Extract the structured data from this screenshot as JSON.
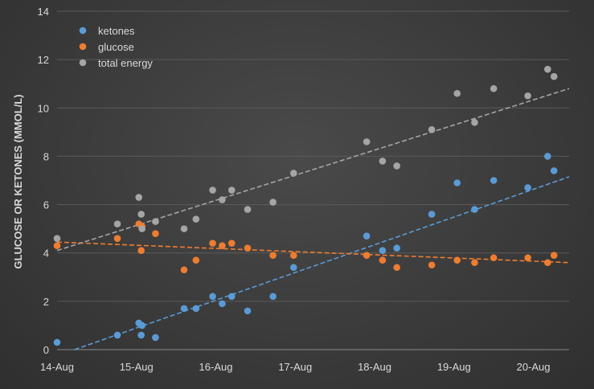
{
  "chart_data": {
    "type": "scatter",
    "title": "",
    "xlabel": "",
    "ylabel": "GLUCOSE OR KETONES (MMOL/L)",
    "xlim": [
      0,
      6.45
    ],
    "ylim": [
      0,
      14
    ],
    "yticks": [
      0,
      2,
      4,
      6,
      8,
      10,
      12,
      14
    ],
    "xticks": [
      {
        "value": 0,
        "label": "14-Aug"
      },
      {
        "value": 1,
        "label": "15-Aug"
      },
      {
        "value": 2,
        "label": "16-Aug"
      },
      {
        "value": 3,
        "label": "17-Aug"
      },
      {
        "value": 4,
        "label": "18-Aug"
      },
      {
        "value": 5,
        "label": "19-Aug"
      },
      {
        "value": 6,
        "label": "20-Aug"
      }
    ],
    "grid": "horizontal",
    "legend_position": "top-left",
    "series": [
      {
        "name": "ketones",
        "color": "#5b9bd5",
        "points": [
          [
            0.0,
            0.3
          ],
          [
            0.76,
            0.6
          ],
          [
            1.06,
            0.6
          ],
          [
            1.03,
            1.1
          ],
          [
            1.07,
            1.0
          ],
          [
            1.24,
            0.5
          ],
          [
            1.6,
            1.7
          ],
          [
            1.75,
            1.7
          ],
          [
            1.96,
            2.2
          ],
          [
            2.08,
            1.9
          ],
          [
            2.2,
            2.2
          ],
          [
            2.4,
            1.6
          ],
          [
            2.72,
            2.2
          ],
          [
            2.98,
            3.4
          ],
          [
            3.9,
            4.7
          ],
          [
            4.1,
            4.1
          ],
          [
            4.28,
            4.2
          ],
          [
            4.72,
            5.6
          ],
          [
            5.04,
            6.9
          ],
          [
            5.26,
            5.8
          ],
          [
            5.5,
            7.0
          ],
          [
            5.93,
            6.7
          ],
          [
            6.18,
            8.0
          ],
          [
            6.26,
            7.4
          ]
        ],
        "trend": {
          "from": [
            0.22,
            0.0
          ],
          "to": [
            6.45,
            7.15
          ]
        }
      },
      {
        "name": "glucose",
        "color": "#ed7d31",
        "points": [
          [
            0.0,
            4.3
          ],
          [
            0.76,
            4.6
          ],
          [
            1.06,
            4.1
          ],
          [
            1.03,
            5.2
          ],
          [
            1.07,
            5.1
          ],
          [
            1.24,
            4.8
          ],
          [
            1.6,
            3.3
          ],
          [
            1.75,
            3.7
          ],
          [
            1.96,
            4.4
          ],
          [
            2.08,
            4.3
          ],
          [
            2.2,
            4.4
          ],
          [
            2.4,
            4.2
          ],
          [
            2.72,
            3.9
          ],
          [
            2.98,
            3.9
          ],
          [
            3.9,
            3.9
          ],
          [
            4.1,
            3.7
          ],
          [
            4.28,
            3.4
          ],
          [
            4.72,
            3.5
          ],
          [
            5.04,
            3.7
          ],
          [
            5.26,
            3.6
          ],
          [
            5.5,
            3.8
          ],
          [
            5.93,
            3.8
          ],
          [
            6.18,
            3.6
          ],
          [
            6.26,
            3.9
          ]
        ],
        "trend": {
          "from": [
            0.0,
            4.45
          ],
          "to": [
            6.45,
            3.6
          ]
        }
      },
      {
        "name": "total energy",
        "color": "#a5a5a5",
        "points": [
          [
            0.0,
            4.6
          ],
          [
            0.76,
            5.2
          ],
          [
            1.06,
            5.6
          ],
          [
            1.03,
            6.3
          ],
          [
            1.07,
            5.0
          ],
          [
            1.24,
            5.3
          ],
          [
            1.6,
            5.0
          ],
          [
            1.75,
            5.4
          ],
          [
            1.96,
            6.6
          ],
          [
            2.08,
            6.2
          ],
          [
            2.2,
            6.6
          ],
          [
            2.4,
            5.8
          ],
          [
            2.72,
            6.1
          ],
          [
            2.98,
            7.3
          ],
          [
            3.9,
            8.6
          ],
          [
            4.1,
            7.8
          ],
          [
            4.28,
            7.6
          ],
          [
            4.72,
            9.1
          ],
          [
            5.04,
            10.6
          ],
          [
            5.26,
            9.4
          ],
          [
            5.5,
            10.8
          ],
          [
            5.93,
            10.5
          ],
          [
            6.18,
            11.6
          ],
          [
            6.26,
            11.3
          ]
        ],
        "trend": {
          "from": [
            0.0,
            4.1
          ],
          "to": [
            6.45,
            10.8
          ]
        }
      }
    ]
  }
}
